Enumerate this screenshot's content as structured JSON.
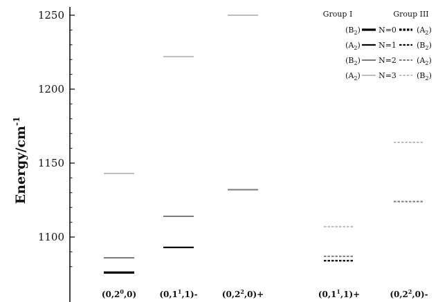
{
  "chart_data": {
    "type": "energy-level-diagram",
    "ylabel": "Energy/cm",
    "ylabel_sup": "-1",
    "ylim": [
      1078,
      1256
    ],
    "yticks": [
      1100,
      1150,
      1200,
      1250
    ],
    "categories": [
      {
        "base": "(0,2",
        "sup": "0",
        "tail": ",0)"
      },
      {
        "base": "(0,1",
        "sup": "1",
        "tail": ",1)-"
      },
      {
        "base": "(0,2",
        "sup": "2",
        "tail": ",0)+"
      },
      {
        "base": "(0,1",
        "sup": "1",
        "tail": ",1)+"
      },
      {
        "base": "(0,2",
        "sup": "2",
        "tail": ",0)-"
      }
    ],
    "levels": [
      {
        "category": 0,
        "energy": 1076,
        "N": 0,
        "group": "I"
      },
      {
        "category": 0,
        "energy": 1086,
        "N": 2,
        "group": "I"
      },
      {
        "category": 0,
        "energy": 1143,
        "N": 3,
        "group": "I"
      },
      {
        "category": 1,
        "energy": 1093,
        "N": 1,
        "group": "I"
      },
      {
        "category": 1,
        "energy": 1114,
        "N": 2,
        "group": "I"
      },
      {
        "category": 1,
        "energy": 1222,
        "N": 3,
        "group": "I"
      },
      {
        "category": 2,
        "energy": 1132,
        "N": 2,
        "group": "I"
      },
      {
        "category": 2,
        "energy": 1250,
        "N": 3,
        "group": "I"
      },
      {
        "category": 3,
        "energy": 1084,
        "N": 1,
        "group": "III"
      },
      {
        "category": 3,
        "energy": 1087,
        "N": 2,
        "group": "III"
      },
      {
        "category": 3,
        "energy": 1107,
        "N": 3,
        "group": "III"
      },
      {
        "category": 4,
        "energy": 1124,
        "N": 2,
        "group": "III"
      },
      {
        "category": 4,
        "energy": 1164,
        "N": 3,
        "group": "III"
      }
    ],
    "legend": {
      "placement": "top-right",
      "headers": [
        "Group I",
        "Group III"
      ],
      "entries": [
        {
          "N": 0,
          "label": "N=0",
          "left_sym": "B",
          "left_sub": "2",
          "right_sym": "A",
          "right_sub": "2",
          "color": "#000000"
        },
        {
          "N": 1,
          "label": "N=1",
          "left_sym": "A",
          "left_sub": "2",
          "right_sym": "B",
          "right_sub": "2",
          "color": "#000000"
        },
        {
          "N": 2,
          "label": "N=2",
          "left_sym": "B",
          "left_sub": "2",
          "right_sym": "A",
          "right_sub": "2",
          "color": "#7a7a7a"
        },
        {
          "N": 3,
          "label": "N=3",
          "left_sym": "A",
          "left_sub": "2",
          "right_sym": "B",
          "right_sub": "2",
          "color": "#bcbcbc"
        }
      ]
    },
    "colors": {
      "N0": "#000000",
      "N1": "#000000",
      "N2": "#7a7a7a",
      "N3": "#bcbcbc",
      "axis": "#000000"
    }
  }
}
